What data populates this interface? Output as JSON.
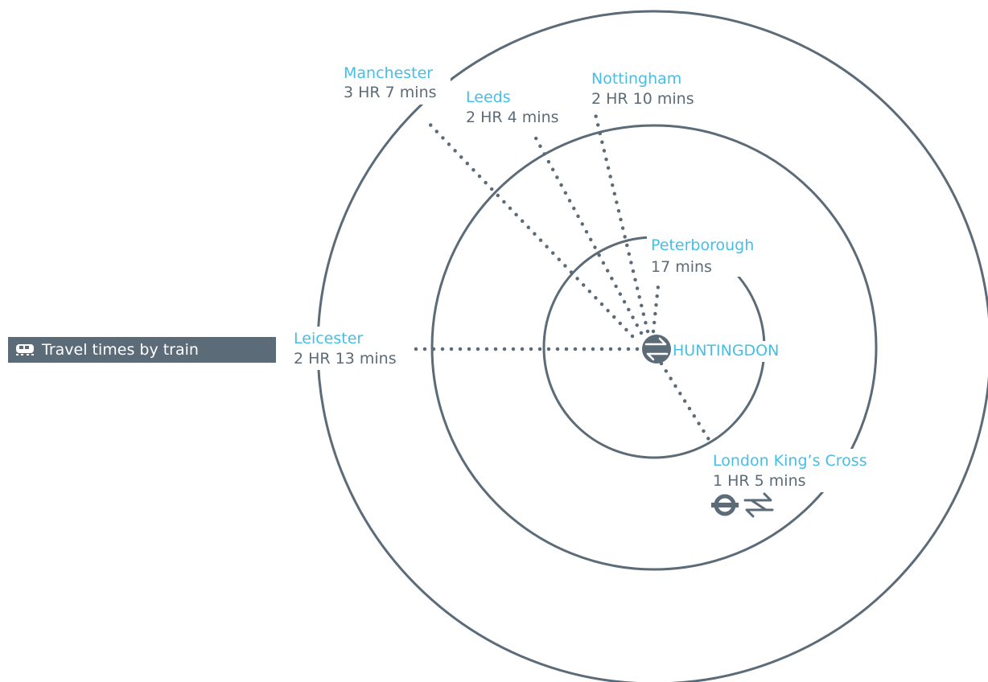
{
  "legend": {
    "label": "Travel times by train",
    "icon": "train-icon"
  },
  "hub": {
    "name": "HUNTINGDON",
    "icon": "national-rail-icon"
  },
  "destinations": [
    {
      "id": "manchester",
      "name": "Manchester",
      "time": "3 HR 7 mins"
    },
    {
      "id": "leeds",
      "name": "Leeds",
      "time": "2 HR 4 mins"
    },
    {
      "id": "nottingham",
      "name": "Nottingham",
      "time": "2 HR 10 mins"
    },
    {
      "id": "peterborough",
      "name": "Peterborough",
      "time": "17 mins"
    },
    {
      "id": "leicester",
      "name": "Leicester",
      "time": "2 HR 13 mins"
    },
    {
      "id": "london",
      "name": "London King’s Cross",
      "time": "1 HR 5 mins",
      "connection_icons": [
        "underground-icon",
        "national-rail-icon"
      ]
    }
  ],
  "colors": {
    "ring": "#5c6b78",
    "route_dots": "#5c6b78",
    "city_name": "#45bfe8",
    "time_text": "#5c6b78",
    "hub_text": "#45bfe8",
    "legend_bg": "#5c6b78",
    "legend_text": "#ffffff"
  }
}
